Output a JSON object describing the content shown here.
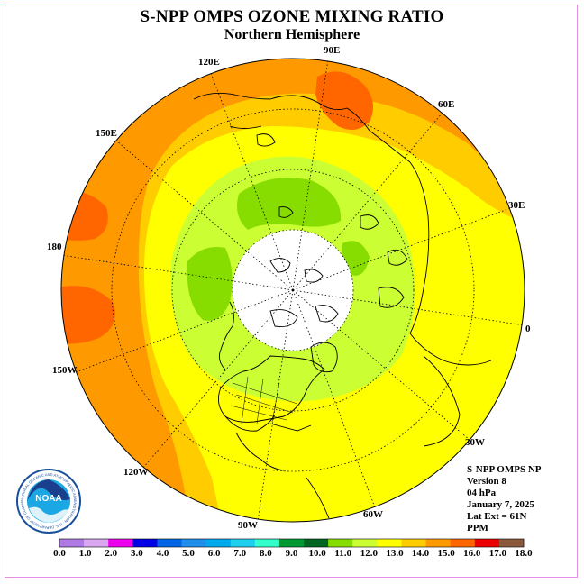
{
  "title": "S-NPP OMPS OZONE MIXING RATIO",
  "subtitle": "Northern Hemisphere",
  "longitude_labels": [
    "90E",
    "60E",
    "30E",
    "0",
    "30W",
    "60W",
    "90W",
    "120W",
    "150W",
    "180",
    "150E",
    "120E"
  ],
  "info": {
    "line1": "S-NPP OMPS NP",
    "line2": "Version 8",
    "line3": "04 hPa",
    "line4": "January 7, 2025",
    "line5": "Lat Ext = 61N",
    "line6": "PPM"
  },
  "logo": {
    "text": "NOAA",
    "ring_text": "NATIONAL OCEANIC AND ATMOSPHERIC ADMINISTRATION · U.S. DEPARTMENT OF COMMERCE"
  },
  "colorbar": {
    "ticks": [
      "0.0",
      "1.0",
      "2.0",
      "3.0",
      "4.0",
      "5.0",
      "6.0",
      "7.0",
      "8.0",
      "9.0",
      "10.0",
      "11.0",
      "12.0",
      "13.0",
      "14.0",
      "15.0",
      "16.0",
      "17.0",
      "18.0"
    ],
    "colors": [
      "#b07ae6",
      "#d9a6f0",
      "#ee00ee",
      "#0000e6",
      "#0066e6",
      "#1f8fee",
      "#00aaee",
      "#1ecfef",
      "#33ffcc",
      "#009933",
      "#006622",
      "#88dd00",
      "#ccff33",
      "#ffff00",
      "#ffcc00",
      "#ff9900",
      "#ff6600",
      "#ee0000",
      "#8b5a3c"
    ]
  },
  "colors": {
    "level_10_11": "#88dd00",
    "level_11_12": "#ccff33",
    "level_12_13": "#ffff00",
    "level_13_14": "#ffcc00",
    "level_14_15": "#ff9900",
    "level_15_16": "#ff6600",
    "polar_night": "#ffffff"
  }
}
